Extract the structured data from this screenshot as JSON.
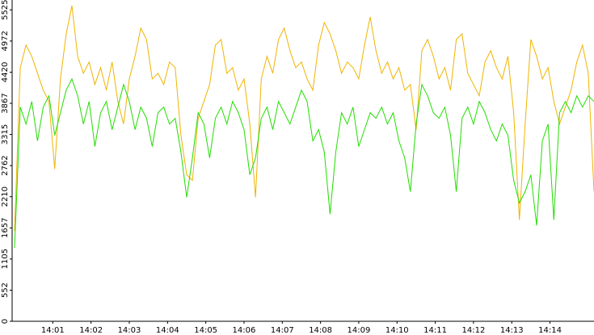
{
  "chart_data": {
    "type": "line",
    "x": [
      0,
      0.15,
      0.3,
      0.45,
      0.6,
      0.75,
      0.9,
      1.05,
      1.2,
      1.35,
      1.5,
      1.65,
      1.8,
      1.95,
      2.1,
      2.25,
      2.4,
      2.55,
      2.7,
      2.85,
      3,
      3.15,
      3.3,
      3.45,
      3.6,
      3.75,
      3.9,
      4.05,
      4.2,
      4.35,
      4.5,
      4.65,
      4.8,
      4.95,
      5.1,
      5.25,
      5.4,
      5.55,
      5.7,
      5.85,
      6,
      6.15,
      6.3,
      6.45,
      6.6,
      6.75,
      6.9,
      7.05,
      7.2,
      7.35,
      7.5,
      7.65,
      7.8,
      7.95,
      8.1,
      8.25,
      8.4,
      8.55,
      8.7,
      8.85,
      9,
      9.15,
      9.3,
      9.45,
      9.6,
      9.75,
      9.9,
      10.05,
      10.2,
      10.35,
      10.5,
      10.65,
      10.8,
      10.95,
      11.1,
      11.25,
      11.4,
      11.55,
      11.7,
      11.85,
      12,
      12.15,
      12.3,
      12.45,
      12.6,
      12.75,
      12.9,
      13.05,
      13.2,
      13.35,
      13.5,
      13.65,
      13.8,
      13.95,
      14.1,
      14.25,
      14.4,
      14.55,
      14.7,
      14.85,
      15,
      15.15
    ],
    "series": [
      {
        "color": "#f0b400",
        "values": [
          1600,
          4500,
          4900,
          4700,
          4400,
          4100,
          3900,
          2700,
          4300,
          5100,
          5600,
          4700,
          4400,
          4600,
          4200,
          4500,
          4100,
          4600,
          3900,
          3500,
          4300,
          4700,
          5200,
          5000,
          4300,
          4400,
          4200,
          4600,
          4500,
          3300,
          2600,
          2500,
          3600,
          3900,
          4200,
          4900,
          5000,
          4400,
          4500,
          4100,
          4300,
          3500,
          2200,
          4300,
          4700,
          4400,
          5000,
          5200,
          4800,
          4500,
          4600,
          4300,
          4100,
          4900,
          5300,
          5100,
          4800,
          4400,
          4600,
          4500,
          4300,
          4900,
          5400,
          4800,
          4400,
          4600,
          4300,
          4500,
          4100,
          4200,
          3400,
          4800,
          5000,
          4700,
          4300,
          4500,
          4100,
          5000,
          5100,
          4400,
          4200,
          4000,
          4600,
          4800,
          4500,
          4300,
          4700,
          3700,
          1800,
          3500,
          5000,
          4700,
          4300,
          4500,
          3900,
          3500,
          3800,
          4100,
          4600,
          4900,
          4400,
          2300
        ]
      },
      {
        "color": "#22dd00",
        "values": [
          1300,
          3800,
          3500,
          3900,
          3200,
          3800,
          4000,
          3300,
          3700,
          4100,
          4300,
          4000,
          3500,
          3900,
          3100,
          3700,
          3900,
          3400,
          3800,
          4200,
          3900,
          3400,
          3800,
          3600,
          3100,
          3700,
          3800,
          3500,
          3600,
          3000,
          2200,
          2900,
          3700,
          3500,
          2900,
          3600,
          3800,
          3500,
          3900,
          3700,
          3400,
          2600,
          2900,
          3600,
          3800,
          3400,
          3900,
          3700,
          3500,
          3800,
          4100,
          3900,
          3200,
          3400,
          3000,
          1900,
          3000,
          3700,
          3500,
          3800,
          3100,
          3400,
          3700,
          3600,
          3800,
          3500,
          3700,
          3200,
          2900,
          2300,
          3500,
          4200,
          4000,
          3700,
          3600,
          3800,
          3300,
          2300,
          3600,
          3800,
          3500,
          3900,
          3700,
          3400,
          3200,
          3500,
          3300,
          2500,
          2100,
          2300,
          2600,
          1700,
          3200,
          3500,
          1800,
          3700,
          3900,
          3700,
          4000,
          3800,
          4000,
          3900
        ]
      }
    ],
    "xlim": [
      0,
      15.15
    ],
    "xticks": [
      {
        "value": 1,
        "label": "14:01"
      },
      {
        "value": 2,
        "label": "14:02"
      },
      {
        "value": 3,
        "label": "14:03"
      },
      {
        "value": 4,
        "label": "14:04"
      },
      {
        "value": 5,
        "label": "14:05"
      },
      {
        "value": 6,
        "label": "14:06"
      },
      {
        "value": 7,
        "label": "14:07"
      },
      {
        "value": 8,
        "label": "14:08"
      },
      {
        "value": 9,
        "label": "14:09"
      },
      {
        "value": 10,
        "label": "14:10"
      },
      {
        "value": 11,
        "label": "14:11"
      },
      {
        "value": 12,
        "label": "14:12"
      },
      {
        "value": 13,
        "label": "14:13"
      },
      {
        "value": 14,
        "label": "14:14"
      }
    ],
    "ylim": [
      0,
      5700
    ],
    "yticks": [
      0,
      552,
      1105,
      1657,
      2210,
      2762,
      3315,
      3867,
      4420,
      4972,
      5525
    ]
  }
}
